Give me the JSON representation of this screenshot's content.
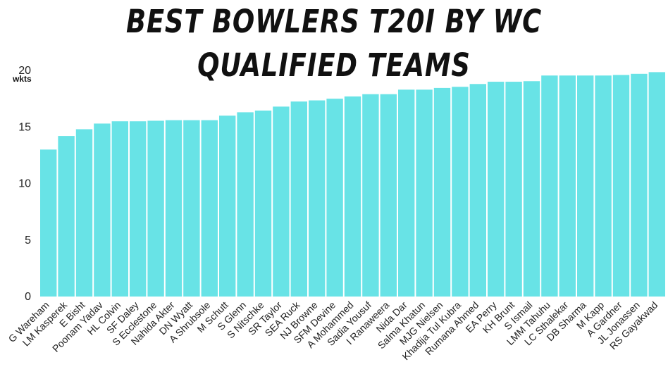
{
  "colors": {
    "bar": "#68E3E6",
    "text": "#222222"
  },
  "chart_data": {
    "type": "bar",
    "title": "BEST BOWLERS T20I BY WC QUALIFIED TEAMS",
    "ylabel": "wkts",
    "ylim": [
      0,
      20
    ],
    "yticks": [
      0,
      5,
      10,
      15,
      20
    ],
    "grid": false,
    "categories": [
      "G Wareham",
      "LM Kasperek",
      "E Bisht",
      "Poonam Yadav",
      "HL Colvin",
      "SF Daley",
      "S Ecclestone",
      "Nahida Akter",
      "DN Wyatt",
      "A Shrubsole",
      "M Schutt",
      "S Glenn",
      "S Nitschke",
      "SR Taylor",
      "SEA Ruck",
      "NJ Browne",
      "SFM Devine",
      "A Mohammed",
      "Sadia Yousuf",
      "I Ranaweera",
      "Nida Dar",
      "Salma Khatun",
      "MJG Nielsen",
      "Khadija Tul Kubra",
      "Rumana Ahmed",
      "EA Perry",
      "KH Brunt",
      "S Ismail",
      "LMM Tahuhu",
      "LC Sthalekar",
      "DB Sharma",
      "M Kapp",
      "A Gardner",
      "JL Jonassen",
      "RS Gayakwad"
    ],
    "values": [
      13.0,
      14.2,
      14.8,
      15.3,
      15.5,
      15.5,
      15.55,
      15.6,
      15.6,
      15.6,
      16.0,
      16.3,
      16.45,
      16.8,
      17.25,
      17.35,
      17.5,
      17.7,
      17.9,
      17.9,
      18.3,
      18.3,
      18.45,
      18.55,
      18.8,
      19.0,
      19.0,
      19.05,
      19.55,
      19.55,
      19.55,
      19.55,
      19.6,
      19.7,
      19.85
    ]
  }
}
